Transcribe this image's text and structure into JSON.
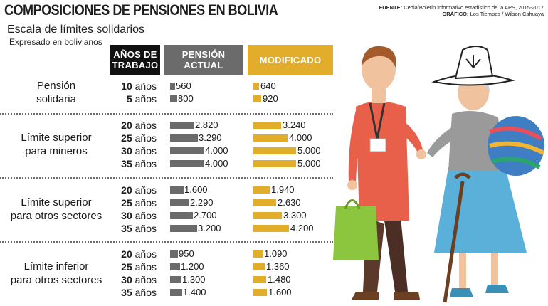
{
  "header": {
    "title": "COMPOSICIONES DE PENSIONES EN BOLIVIA",
    "source_label": "FUENTE:",
    "source_text": "Cedla/Boletín informativo estadístico de la APS, 2015-2017",
    "graphic_label": "GRÁFICO:",
    "graphic_text": "Los Tiempos / Wilson Cahuaya",
    "subtitle": "Escala de límites solidarios",
    "unit_note": "Expresado en bolivianos"
  },
  "columns": {
    "years": "AÑOS DE TRABAJO",
    "actual": "PENSIÓN ACTUAL",
    "modified": "MODIFICADO"
  },
  "colors": {
    "actual": "#6b6b6b",
    "modified": "#e1ad2b",
    "years_header": "#111111"
  },
  "chart_data": {
    "type": "bar",
    "orientation": "horizontal",
    "series_names": [
      "PENSIÓN ACTUAL",
      "MODIFICADO"
    ],
    "groups": [
      {
        "label_line1": "Pensión",
        "label_line2": "solidaria",
        "rows": [
          {
            "num": "10",
            "word": "años",
            "actual": 560,
            "actual_label": "560",
            "modified": 640,
            "modified_label": "640"
          },
          {
            "num": "5",
            "word": "años",
            "actual": 800,
            "actual_label": "800",
            "modified": 920,
            "modified_label": "920"
          }
        ]
      },
      {
        "label_line1": "Límite superior",
        "label_line2": "para mineros",
        "rows": [
          {
            "num": "20",
            "word": "años",
            "actual": 2820,
            "actual_label": "2.820",
            "modified": 3240,
            "modified_label": "3.240"
          },
          {
            "num": "25",
            "word": "años",
            "actual": 3290,
            "actual_label": "3.290",
            "modified": 4000,
            "modified_label": "4.000"
          },
          {
            "num": "30",
            "word": "años",
            "actual": 4000,
            "actual_label": "4.000",
            "modified": 5000,
            "modified_label": "5.000"
          },
          {
            "num": "35",
            "word": "años",
            "actual": 4000,
            "actual_label": "4.000",
            "modified": 5000,
            "modified_label": "5.000"
          }
        ]
      },
      {
        "label_line1": "Límite superior",
        "label_line2": "para otros sectores",
        "rows": [
          {
            "num": "20",
            "word": "años",
            "actual": 1600,
            "actual_label": "1.600",
            "modified": 1940,
            "modified_label": "1.940"
          },
          {
            "num": "25",
            "word": "años",
            "actual": 2290,
            "actual_label": "2.290",
            "modified": 2630,
            "modified_label": "2.630"
          },
          {
            "num": "30",
            "word": "años",
            "actual": 2700,
            "actual_label": "2.700",
            "modified": 3300,
            "modified_label": "3.300"
          },
          {
            "num": "35",
            "word": "años",
            "actual": 3200,
            "actual_label": "3.200",
            "modified": 4200,
            "modified_label": "4.200"
          }
        ]
      },
      {
        "label_line1": "Límite inferior",
        "label_line2": "para otros sectores",
        "rows": [
          {
            "num": "20",
            "word": "años",
            "actual": 950,
            "actual_label": "950",
            "modified": 1090,
            "modified_label": "1.090"
          },
          {
            "num": "25",
            "word": "años",
            "actual": 1200,
            "actual_label": "1.200",
            "modified": 1360,
            "modified_label": "1.360"
          },
          {
            "num": "30",
            "word": "años",
            "actual": 1300,
            "actual_label": "1.300",
            "modified": 1480,
            "modified_label": "1.480"
          },
          {
            "num": "35",
            "word": "años",
            "actual": 1400,
            "actual_label": "1.400",
            "modified": 1600,
            "modified_label": "1.600"
          }
        ]
      }
    ]
  }
}
